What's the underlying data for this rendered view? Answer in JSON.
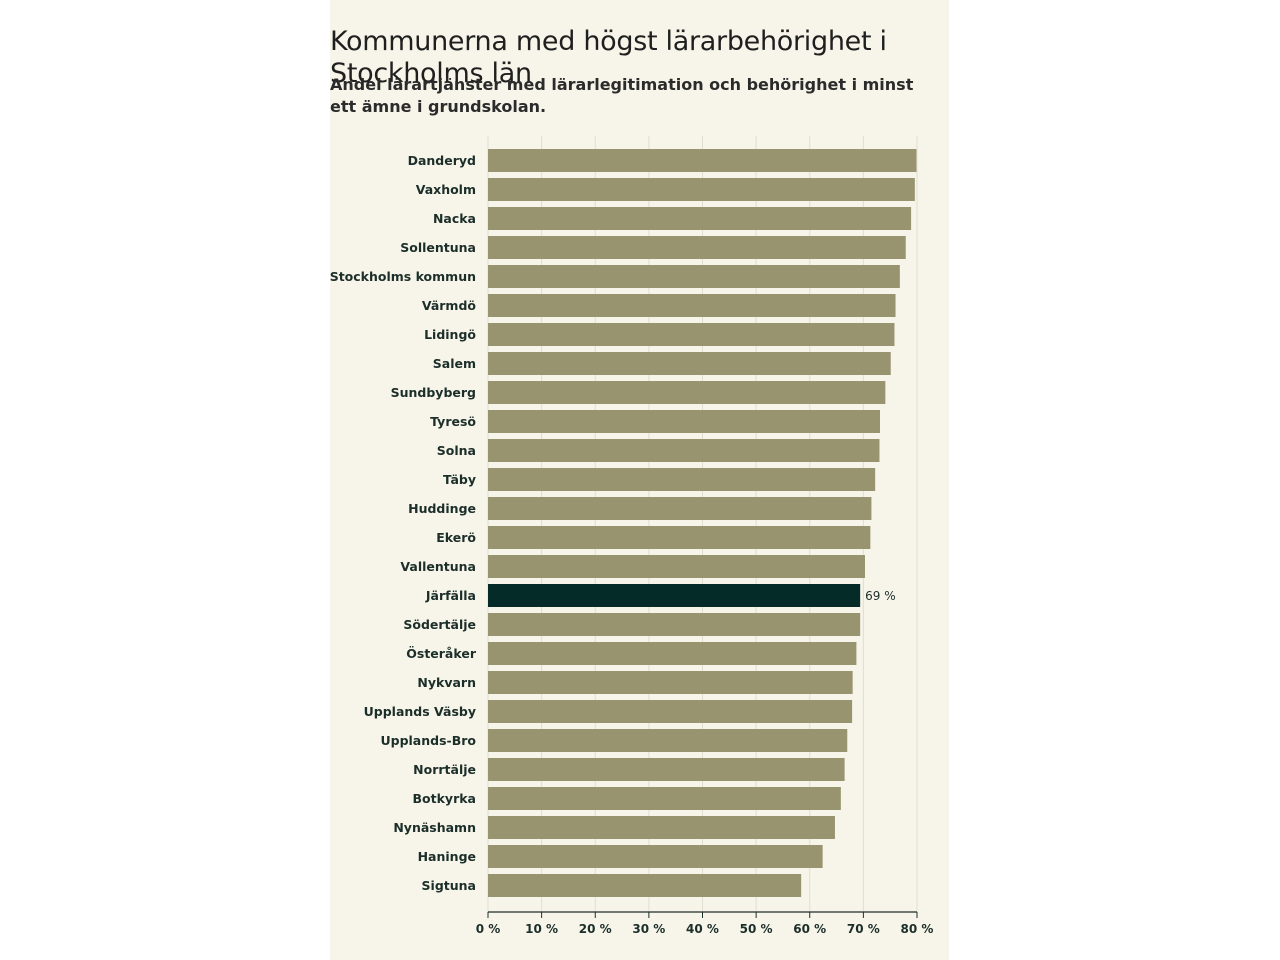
{
  "title": "Kommunerna med högst lärarbehörighet i Stockholms län",
  "subtitle": "Andel lärartjänster med lärarlegitimation och behörighet i minst ett ämne i grundskolan.",
  "colors": {
    "panel_bg": "#f7f5e9",
    "bar": "#989470",
    "highlight_bar": "#052b28",
    "grid": "#e1ded0",
    "axis": "#1c2e2a"
  },
  "chart_data": {
    "type": "bar",
    "orientation": "horizontal",
    "categories": [
      "Danderyd",
      "Vaxholm",
      "Nacka",
      "Sollentuna",
      "Stockholms kommun",
      "Värmdö",
      "Lidingö",
      "Salem",
      "Sundbyberg",
      "Tyresö",
      "Solna",
      "Täby",
      "Huddinge",
      "Ekerö",
      "Vallentuna",
      "Järfälla",
      "Södertälje",
      "Österåker",
      "Nykvarn",
      "Upplands Väsby",
      "Upplands-Bro",
      "Norrtälje",
      "Botkyrka",
      "Nynäshamn",
      "Haninge",
      "Sigtuna"
    ],
    "values": [
      79.9,
      79.6,
      78.9,
      77.9,
      76.8,
      76.0,
      75.8,
      75.1,
      74.1,
      73.1,
      73.0,
      72.2,
      71.5,
      71.3,
      70.3,
      69.4,
      69.4,
      68.7,
      68.0,
      67.9,
      67.0,
      66.5,
      65.8,
      64.7,
      62.4,
      58.4
    ],
    "highlight": "Järfälla",
    "highlight_value_label": "69 %",
    "xlim": [
      0,
      80
    ],
    "xticks": [
      0,
      10,
      20,
      30,
      40,
      50,
      60,
      70,
      80
    ],
    "xtick_labels": [
      "0 %",
      "10 %",
      "20 %",
      "30 %",
      "40 %",
      "50 %",
      "60 %",
      "70 %",
      "80 %"
    ],
    "unit": "%",
    "grid": true
  }
}
